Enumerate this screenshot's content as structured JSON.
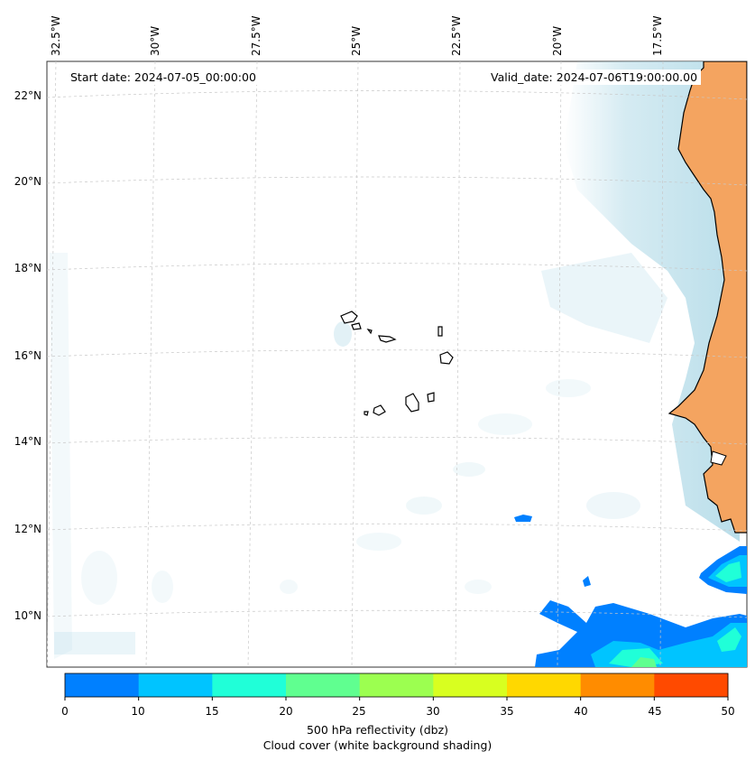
{
  "info": {
    "start_date": "Start date: 2024-07-05_00:00:00",
    "valid_date": "Valid_date: 2024-07-06T19:00:00.00"
  },
  "lon_labels": [
    "32.5°W",
    "30°W",
    "27.5°W",
    "25°W",
    "22.5°W",
    "20°W",
    "17.5°W"
  ],
  "lat_labels": [
    "22°N",
    "20°N",
    "18°N",
    "16°N",
    "14°N",
    "12°N",
    "10°N"
  ],
  "colorbar": {
    "ticks": [
      "0",
      "10",
      "15",
      "20",
      "25",
      "30",
      "35",
      "40",
      "45",
      "50"
    ],
    "colors": [
      "#0080ff",
      "#00c4ff",
      "#20ffd8",
      "#60ff90",
      "#9cff50",
      "#d8ff20",
      "#ffd800",
      "#ff8c00",
      "#ff4a00"
    ],
    "label_line1": "500 hPa reflectivity (dbz)",
    "label_line2": "Cloud cover (white background shading)"
  },
  "colors": {
    "land": "#f4a460",
    "cloud": "#add8e6",
    "gridline": "#c8c8c8",
    "coastline": "#000000"
  }
}
